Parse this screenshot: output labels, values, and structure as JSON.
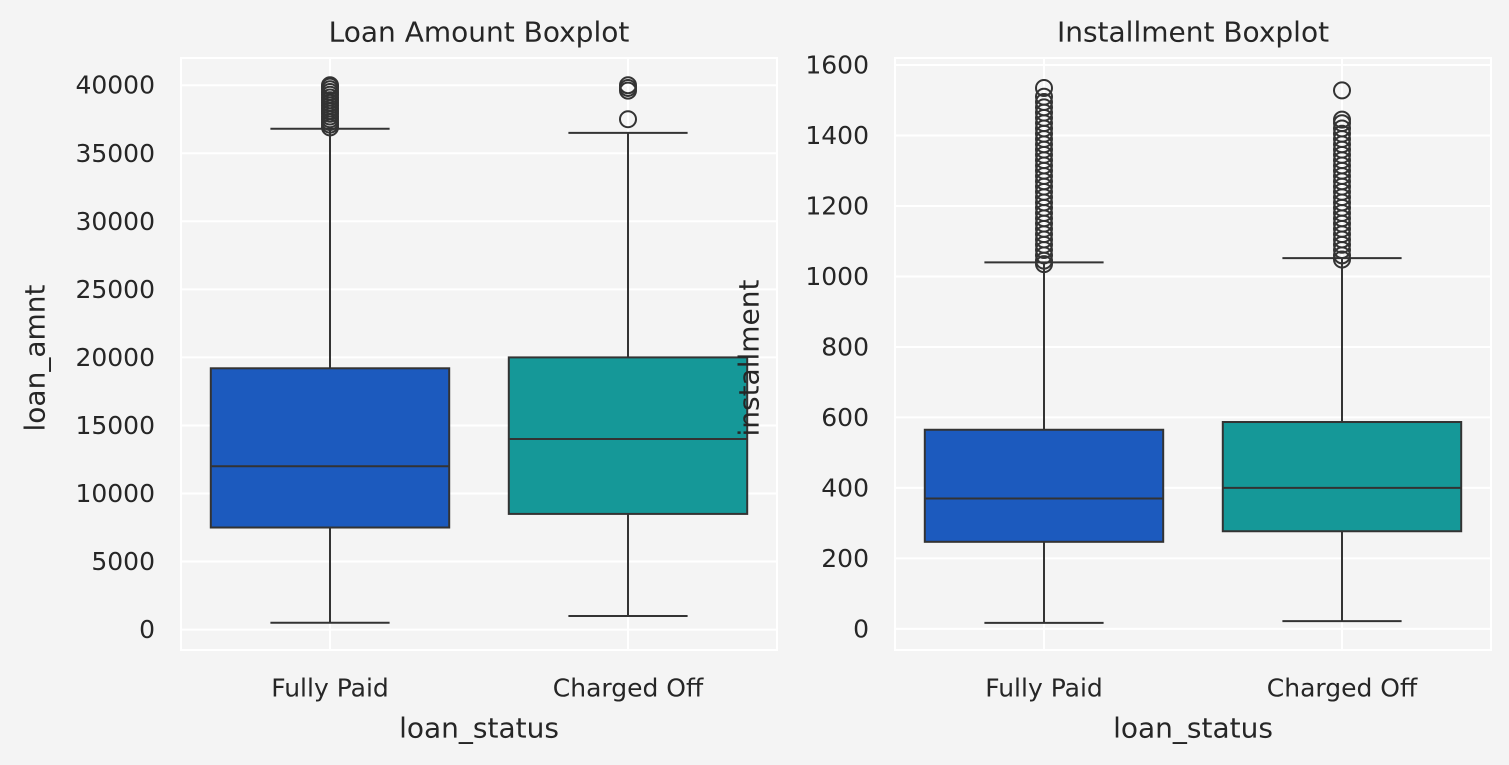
{
  "chart_data": [
    {
      "type": "boxplot",
      "title": "Loan Amount Boxplot",
      "xlabel": "loan_status",
      "ylabel": "loan_amnt",
      "categories": [
        "Fully Paid",
        "Charged Off"
      ],
      "ylim": [
        -1500,
        42000
      ],
      "yticks": [
        0,
        5000,
        10000,
        15000,
        20000,
        25000,
        30000,
        35000,
        40000
      ],
      "grid": true,
      "boxes": [
        {
          "category": "Fully Paid",
          "color": "#1c5abe",
          "whisker_low": 500,
          "q1": 7500,
          "median": 12000,
          "q3": 19200,
          "whisker_high": 36800,
          "outliers": [
            36900,
            37100,
            37300,
            37500,
            37700,
            37900,
            38100,
            38300,
            38500,
            38700,
            38900,
            39100,
            39300,
            39500,
            39700,
            39900,
            40000
          ]
        },
        {
          "category": "Charged Off",
          "color": "#159898",
          "whisker_low": 1000,
          "q1": 8500,
          "median": 14000,
          "q3": 20000,
          "whisker_high": 36500,
          "outliers": [
            37500,
            39600,
            39800,
            40000
          ]
        }
      ]
    },
    {
      "type": "boxplot",
      "title": "Installment Boxplot",
      "xlabel": "loan_status",
      "ylabel": "installment",
      "categories": [
        "Fully Paid",
        "Charged Off"
      ],
      "ylim": [
        -60,
        1620
      ],
      "yticks": [
        0,
        200,
        400,
        600,
        800,
        1000,
        1200,
        1400,
        1600
      ],
      "grid": true,
      "boxes": [
        {
          "category": "Fully Paid",
          "color": "#1c5abe",
          "whisker_low": 17,
          "q1": 247,
          "median": 370,
          "q3": 565,
          "whisker_high": 1040,
          "outliers": [
            1035,
            1045,
            1060,
            1075,
            1090,
            1105,
            1120,
            1135,
            1150,
            1165,
            1180,
            1195,
            1210,
            1225,
            1240,
            1255,
            1270,
            1285,
            1300,
            1315,
            1330,
            1345,
            1360,
            1375,
            1390,
            1405,
            1420,
            1435,
            1450,
            1465,
            1480,
            1495,
            1510,
            1535
          ]
        },
        {
          "category": "Charged Off",
          "color": "#159898",
          "whisker_low": 22,
          "q1": 277,
          "median": 400,
          "q3": 587,
          "whisker_high": 1052,
          "outliers": [
            1048,
            1060,
            1075,
            1090,
            1105,
            1120,
            1135,
            1150,
            1165,
            1180,
            1195,
            1210,
            1225,
            1240,
            1255,
            1270,
            1285,
            1300,
            1315,
            1330,
            1345,
            1360,
            1375,
            1390,
            1405,
            1420,
            1435,
            1445,
            1528
          ]
        }
      ]
    }
  ]
}
